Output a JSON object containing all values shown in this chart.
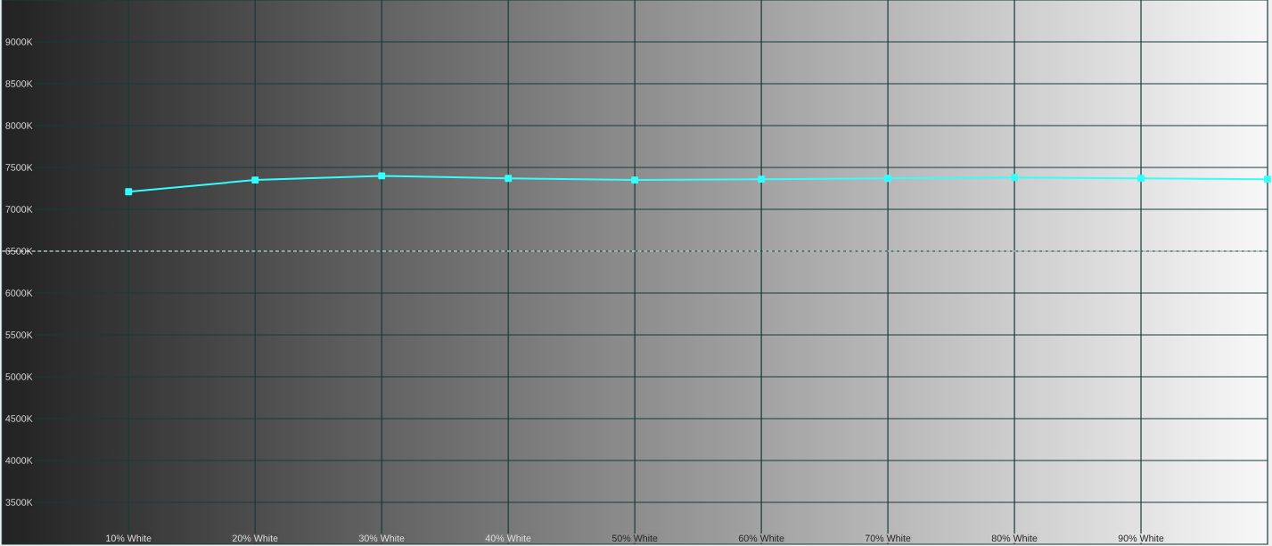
{
  "chart_data": {
    "type": "line",
    "x": [
      10,
      20,
      30,
      40,
      50,
      60,
      70,
      80,
      90,
      100
    ],
    "values": [
      7210,
      7350,
      7400,
      7370,
      7350,
      7360,
      7370,
      7380,
      7370,
      7360
    ],
    "color": "#33ffff",
    "marker": "square",
    "xlim": [
      0,
      100
    ],
    "xticks": [
      {
        "value": 10,
        "label": "10% White"
      },
      {
        "value": 20,
        "label": "20% White"
      },
      {
        "value": 30,
        "label": "30% White"
      },
      {
        "value": 40,
        "label": "40% White"
      },
      {
        "value": 50,
        "label": "50% White"
      },
      {
        "value": 60,
        "label": "60% White"
      },
      {
        "value": 70,
        "label": "70% White"
      },
      {
        "value": 80,
        "label": "80% White"
      },
      {
        "value": 90,
        "label": "90% White"
      }
    ],
    "ylim": [
      3000,
      9500
    ],
    "yticks": [
      {
        "value": 3500,
        "label": "3500K"
      },
      {
        "value": 4000,
        "label": "4000K"
      },
      {
        "value": 4500,
        "label": "4500K"
      },
      {
        "value": 5000,
        "label": "5000K"
      },
      {
        "value": 5500,
        "label": "5500K"
      },
      {
        "value": 6000,
        "label": "6000K"
      },
      {
        "value": 6500,
        "label": "6500K"
      },
      {
        "value": 7000,
        "label": "7000K"
      },
      {
        "value": 7500,
        "label": "7500K"
      },
      {
        "value": 8000,
        "label": "8000K"
      },
      {
        "value": 8500,
        "label": "8500K"
      },
      {
        "value": 9000,
        "label": "9000K"
      }
    ],
    "grid": true,
    "ref_lines": [
      {
        "axis": "y",
        "value": 6500,
        "color": "#ffffff",
        "line_style": "dashed"
      }
    ]
  }
}
